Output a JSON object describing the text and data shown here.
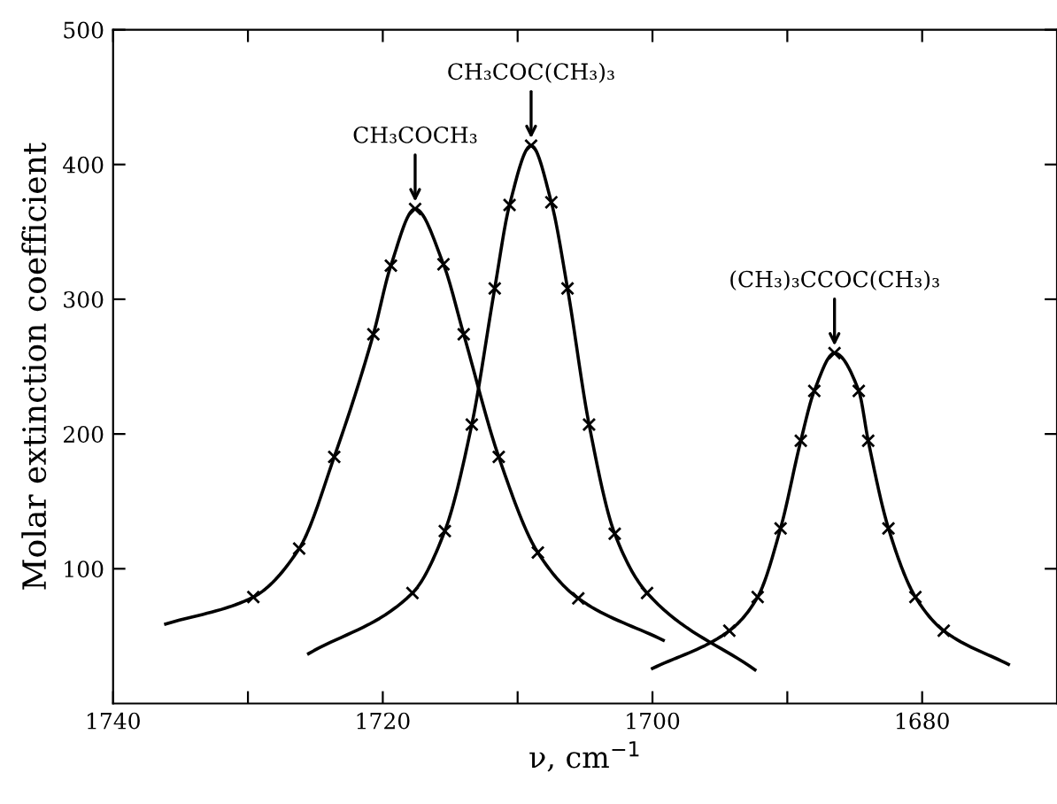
{
  "chart_data": {
    "type": "line",
    "xlabel": "ν, cm$^{−1}$",
    "ylabel": "Molar extinction coefficient",
    "xlim": [
      1740,
      1670
    ],
    "ylim": [
      0,
      500
    ],
    "xticks": [
      1740,
      {
        "value": 1730,
        "label": null
      },
      1720,
      {
        "value": 1710,
        "label": null
      },
      1700,
      {
        "value": 1690,
        "label": null
      },
      1680
    ],
    "yticks": [
      100,
      200,
      300,
      400,
      500
    ],
    "grid": false,
    "legend": false,
    "line_style": "solid",
    "series": [
      {
        "type": "line",
        "color": "#000000",
        "marker": "none",
        "x": [
          1736.1,
          1729.6,
          1726.2,
          1723.6,
          1720.7,
          1719.4,
          1717.6,
          1715.5,
          1714.0,
          1711.4,
          1708.5,
          1705.5,
          1699.2
        ],
        "values": [
          59,
          79,
          115,
          183,
          274,
          325,
          367,
          326,
          274,
          183,
          112,
          78,
          47
        ]
      },
      {
        "type": "scatter",
        "color": "#000000",
        "marker": "cross",
        "x": [
          1729.6,
          1726.2,
          1723.6,
          1720.7,
          1719.4,
          1717.6,
          1715.5,
          1714.0,
          1711.4,
          1708.5,
          1705.5
        ],
        "values": [
          79,
          115,
          183,
          274,
          325,
          367,
          326,
          274,
          183,
          112,
          78
        ]
      },
      {
        "type": "line",
        "color": "#000000",
        "marker": "none",
        "x": [
          1725.5,
          1717.8,
          1715.4,
          1713.4,
          1711.7,
          1710.6,
          1709.0,
          1707.5,
          1706.3,
          1704.7,
          1702.8,
          1700.4,
          1692.4
        ],
        "values": [
          37,
          82,
          128,
          207,
          308,
          370,
          414,
          372,
          308,
          207,
          126,
          82,
          25
        ]
      },
      {
        "type": "scatter",
        "color": "#000000",
        "marker": "cross",
        "x": [
          1717.8,
          1715.4,
          1713.4,
          1711.7,
          1710.6,
          1709.0,
          1707.5,
          1706.3,
          1704.7,
          1702.8,
          1700.4
        ],
        "values": [
          82,
          128,
          207,
          308,
          370,
          414,
          372,
          308,
          207,
          126,
          82
        ]
      },
      {
        "type": "line",
        "color": "#000000",
        "marker": "none",
        "x": [
          1700.0,
          1694.3,
          1692.2,
          1690.5,
          1689.0,
          1688.0,
          1686.5,
          1684.7,
          1684.0,
          1682.5,
          1680.5,
          1678.4,
          1673.6
        ],
        "values": [
          26,
          54,
          79,
          130,
          195,
          232,
          260,
          232,
          195,
          130,
          79,
          54,
          29
        ]
      },
      {
        "type": "scatter",
        "color": "#000000",
        "marker": "cross",
        "x": [
          1694.3,
          1692.2,
          1690.5,
          1689.0,
          1688.0,
          1686.5,
          1684.7,
          1684.0,
          1682.5,
          1680.5,
          1678.4
        ],
        "values": [
          54,
          79,
          130,
          195,
          232,
          260,
          232,
          195,
          130,
          79,
          54
        ]
      }
    ],
    "annotations": [
      {
        "text": "CH₃COCH₃",
        "x": 1717.6,
        "y": 367
      },
      {
        "text": "CH₃COC(CH₃)₃",
        "x": 1709.0,
        "y": 414
      },
      {
        "text": "(CH₃)₃CCOC(CH₃)₃",
        "x": 1686.5,
        "y": 260
      }
    ]
  }
}
